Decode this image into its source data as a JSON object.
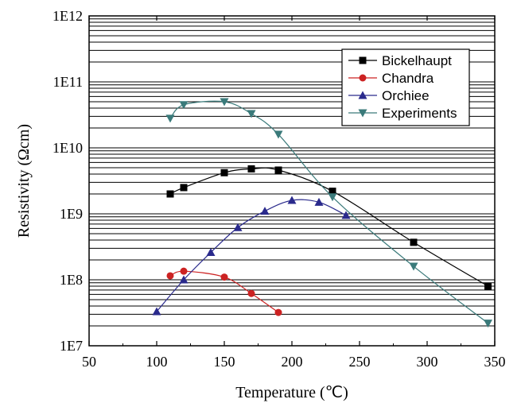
{
  "chart_data": {
    "type": "line",
    "xlabel": "Temperature (℃)",
    "ylabel": "Resistivity (Ωcm)",
    "xlim": [
      50,
      350
    ],
    "ylim": [
      10000000.0,
      1000000000000.0
    ],
    "yscale": "log",
    "grid": "horizontal minor decades",
    "legend_position": "top-right",
    "x_ticks": [
      50,
      100,
      150,
      200,
      250,
      300,
      350
    ],
    "x_tick_labels": [
      "50",
      "100",
      "150",
      "200",
      "250",
      "300",
      "350"
    ],
    "y_ticks": [
      10000000.0,
      100000000.0,
      1000000000.0,
      10000000000.0,
      100000000000.0,
      1000000000000.0
    ],
    "y_tick_labels": [
      "1E7",
      "1E8",
      "1E9",
      "1E10",
      "1E11",
      "1E12"
    ],
    "series": [
      {
        "name": "Bickelhaupt",
        "color": "#000000",
        "marker": "square",
        "x": [
          110,
          120,
          150,
          170,
          190,
          230,
          290,
          345
        ],
        "y": [
          2000000000.0,
          2500000000.0,
          4200000000.0,
          4800000000.0,
          4600000000.0,
          2200000000.0,
          370000000.0,
          80000000.0
        ]
      },
      {
        "name": "Chandra",
        "color": "#cc2222",
        "marker": "circle",
        "x": [
          110,
          120,
          150,
          170,
          190
        ],
        "y": [
          115000000.0,
          135000000.0,
          110000000.0,
          62000000.0,
          32000000.0
        ]
      },
      {
        "name": "Orchiee",
        "color": "#2a2a8c",
        "marker": "triangle-up",
        "x": [
          100,
          120,
          140,
          160,
          180,
          200,
          220,
          240
        ],
        "y": [
          33000000.0,
          100000000.0,
          260000000.0,
          620000000.0,
          1100000000.0,
          1600000000.0,
          1500000000.0,
          950000000.0
        ]
      },
      {
        "name": "Experiments",
        "color": "#3a7a7a",
        "marker": "triangle-down",
        "x": [
          110,
          120,
          150,
          170,
          190,
          230,
          290,
          345
        ],
        "y": [
          28000000000.0,
          45000000000.0,
          50000000000.0,
          33000000000.0,
          16000000000.0,
          1800000000.0,
          160000000.0,
          22000000.0
        ]
      }
    ]
  }
}
